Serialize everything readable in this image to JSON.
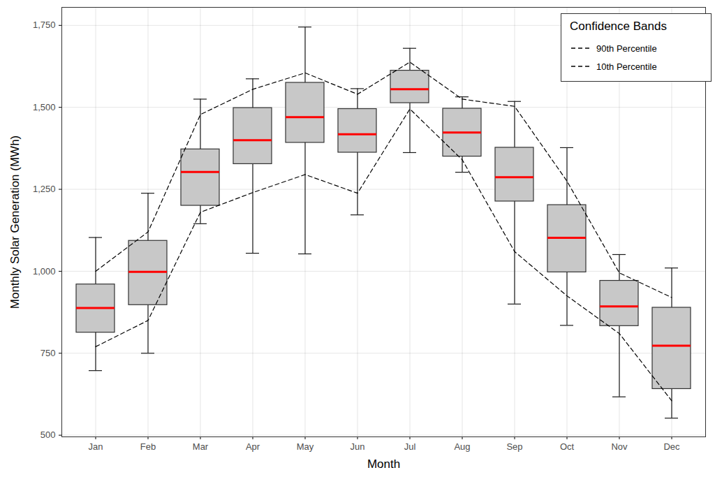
{
  "chart_data": {
    "type": "box",
    "x_label": "Month",
    "y_label": "Monthly Solar Generation (MWh)",
    "categories": [
      "Jan",
      "Feb",
      "Mar",
      "Apr",
      "May",
      "Jun",
      "Jul",
      "Aug",
      "Sep",
      "Oct",
      "Nov",
      "Dec"
    ],
    "boxes": {
      "color": "#c8c8c8",
      "whisker_low": [
        697,
        750,
        1145,
        1055,
        1053,
        1172,
        1362,
        1302,
        900,
        835,
        617,
        552
      ],
      "q1": [
        813,
        897,
        1200,
        1327,
        1392,
        1362,
        1513,
        1350,
        1213,
        997,
        833,
        641
      ],
      "q3": [
        960,
        1093,
        1372,
        1498,
        1575,
        1495,
        1612,
        1496,
        1377,
        1202,
        971,
        889
      ],
      "whisker_high": [
        1103,
        1238,
        1525,
        1587,
        1745,
        1557,
        1680,
        1532,
        1518,
        1377,
        1051,
        1010
      ]
    },
    "medians": {
      "color": "#ff0000",
      "values": [
        888,
        998,
        1303,
        1400,
        1470,
        1418,
        1555,
        1423,
        1287,
        1102,
        893,
        773
      ]
    },
    "legend_title": "Confidence Bands",
    "series": [
      {
        "name": "90th Percentile",
        "color": "#000000",
        "line_style": "dashed",
        "values": [
          1000,
          1120,
          1478,
          1555,
          1605,
          1540,
          1638,
          1525,
          1503,
          1275,
          995,
          920
        ]
      },
      {
        "name": "10th Percentile",
        "color": "#000000",
        "line_style": "dashed",
        "values": [
          770,
          850,
          1180,
          1240,
          1295,
          1238,
          1495,
          1340,
          1060,
          925,
          810,
          605
        ]
      }
    ],
    "ylim": [
      495,
      1805
    ],
    "yticks": [
      500,
      750,
      {
        "value": 1000,
        "label": "1,000"
      },
      {
        "value": 1250,
        "label": "1,250"
      },
      {
        "value": 1500,
        "label": "1,500"
      },
      {
        "value": 1750,
        "label": "1,750"
      }
    ],
    "grid": true,
    "legend": "top-right"
  }
}
